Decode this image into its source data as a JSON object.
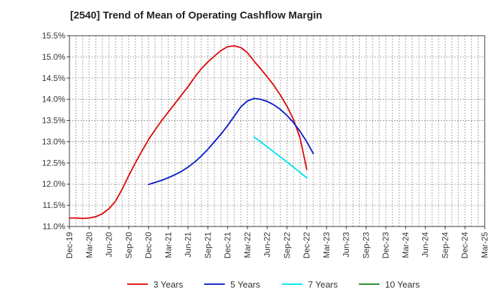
{
  "chart_data": {
    "type": "line",
    "title": "[2540]  Trend of Mean of Operating Cashflow Margin",
    "xlabel": "",
    "ylabel": "",
    "ylim": [
      11.0,
      15.5
    ],
    "y_ticks": [
      "11.0%",
      "11.5%",
      "12.0%",
      "12.5%",
      "13.0%",
      "13.5%",
      "14.0%",
      "14.5%",
      "15.0%",
      "15.5%"
    ],
    "y_tick_values": [
      11.0,
      11.5,
      12.0,
      12.5,
      13.0,
      13.5,
      14.0,
      14.5,
      15.0,
      15.5
    ],
    "x_ticks": [
      "Dec-19",
      "Mar-20",
      "Jun-20",
      "Sep-20",
      "Dec-20",
      "Mar-21",
      "Jun-21",
      "Sep-21",
      "Dec-21",
      "Mar-22",
      "Jun-22",
      "Sep-22",
      "Dec-22",
      "Mar-23",
      "Jun-23",
      "Sep-23",
      "Dec-23",
      "Mar-24",
      "Jun-24",
      "Sep-24",
      "Dec-24",
      "Mar-25"
    ],
    "grid": true,
    "legend_position": "bottom",
    "series": [
      {
        "name": "3 Years",
        "color": "#dd1111",
        "start_index": 0,
        "values": [
          11.2,
          11.2,
          11.19,
          11.2,
          11.23,
          11.3,
          11.42,
          11.6,
          11.88,
          12.2,
          12.5,
          12.78,
          13.05,
          13.28,
          13.5,
          13.7,
          13.9,
          14.1,
          14.3,
          14.52,
          14.72,
          14.88,
          15.02,
          15.15,
          15.24,
          15.26,
          15.22,
          15.1,
          14.9,
          14.72,
          14.53,
          14.33,
          14.1,
          13.84,
          13.52,
          13.08,
          12.35
        ]
      },
      {
        "name": "5 Years",
        "color": "#1122cc",
        "start_index": 12,
        "values": [
          11.99,
          12.04,
          12.09,
          12.15,
          12.22,
          12.3,
          12.4,
          12.52,
          12.66,
          12.82,
          13.0,
          13.18,
          13.38,
          13.6,
          13.82,
          13.96,
          14.02,
          14.0,
          13.95,
          13.87,
          13.76,
          13.62,
          13.45,
          13.24,
          13.0,
          12.72
        ]
      },
      {
        "name": "7 Years",
        "color": "#00e5ee",
        "start_index": 28,
        "values": [
          13.11,
          13.0,
          12.88,
          12.76,
          12.64,
          12.52,
          12.4,
          12.27,
          12.15
        ]
      },
      {
        "name": "10 Years",
        "color": "#228b22",
        "start_index": 0,
        "values": []
      }
    ]
  }
}
